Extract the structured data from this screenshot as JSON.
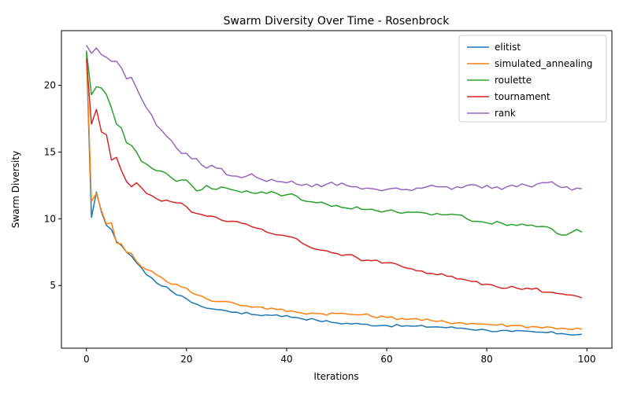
{
  "chart_data": {
    "type": "line",
    "title": "Swarm Diversity Over Time - Rosenbrock",
    "xlabel": "Iterations",
    "ylabel": "Swarm Diversity",
    "xlim": [
      -5,
      105
    ],
    "ylim": [
      0.3,
      24.1
    ],
    "xticks": [
      0,
      20,
      40,
      60,
      80,
      100
    ],
    "yticks": [
      5,
      10,
      15,
      20
    ],
    "grid": false,
    "legend_position": "top-right",
    "series": [
      {
        "name": "elitist",
        "color": "#1f77b4",
        "anchors": [
          [
            0,
            22.4
          ],
          [
            1,
            10.1
          ],
          [
            2,
            12.0
          ],
          [
            3,
            10.5
          ],
          [
            4,
            9.5
          ],
          [
            5,
            9.2
          ],
          [
            6,
            8.3
          ],
          [
            7,
            8.0
          ],
          [
            8,
            7.5
          ],
          [
            9,
            7.2
          ],
          [
            10,
            6.7
          ],
          [
            12,
            5.8
          ],
          [
            14,
            5.2
          ],
          [
            16,
            4.9
          ],
          [
            18,
            4.3
          ],
          [
            20,
            4.0
          ],
          [
            22,
            3.6
          ],
          [
            24,
            3.3
          ],
          [
            26,
            3.2
          ],
          [
            28,
            3.1
          ],
          [
            30,
            3.0
          ],
          [
            34,
            2.8
          ],
          [
            38,
            2.8
          ],
          [
            42,
            2.6
          ],
          [
            46,
            2.4
          ],
          [
            50,
            2.2
          ],
          [
            55,
            2.1
          ],
          [
            60,
            2.0
          ],
          [
            65,
            1.95
          ],
          [
            70,
            1.9
          ],
          [
            75,
            1.8
          ],
          [
            80,
            1.65
          ],
          [
            85,
            1.55
          ],
          [
            90,
            1.5
          ],
          [
            95,
            1.4
          ],
          [
            100,
            1.3
          ]
        ],
        "noise": 0.1
      },
      {
        "name": "simulated_annealing",
        "color": "#ff7f0e",
        "anchors": [
          [
            0,
            22.5
          ],
          [
            1,
            11.3
          ],
          [
            2,
            11.9
          ],
          [
            3,
            10.6
          ],
          [
            4,
            9.6
          ],
          [
            5,
            9.7
          ],
          [
            6,
            8.2
          ],
          [
            7,
            8.1
          ],
          [
            8,
            7.5
          ],
          [
            9,
            7.4
          ],
          [
            10,
            6.8
          ],
          [
            12,
            6.2
          ],
          [
            14,
            5.8
          ],
          [
            16,
            5.3
          ],
          [
            18,
            5.1
          ],
          [
            20,
            4.8
          ],
          [
            22,
            4.3
          ],
          [
            24,
            4.0
          ],
          [
            26,
            3.8
          ],
          [
            28,
            3.8
          ],
          [
            30,
            3.6
          ],
          [
            34,
            3.4
          ],
          [
            38,
            3.2
          ],
          [
            42,
            3.0
          ],
          [
            46,
            2.9
          ],
          [
            50,
            2.9
          ],
          [
            55,
            2.8
          ],
          [
            60,
            2.6
          ],
          [
            65,
            2.5
          ],
          [
            70,
            2.3
          ],
          [
            75,
            2.2
          ],
          [
            80,
            2.1
          ],
          [
            85,
            2.0
          ],
          [
            90,
            1.9
          ],
          [
            95,
            1.8
          ],
          [
            100,
            1.7
          ]
        ],
        "noise": 0.12
      },
      {
        "name": "roulette",
        "color": "#2ca02c",
        "anchors": [
          [
            0,
            22.6
          ],
          [
            1,
            19.3
          ],
          [
            2,
            19.9
          ],
          [
            3,
            19.8
          ],
          [
            4,
            19.3
          ],
          [
            5,
            18.3
          ],
          [
            6,
            17.1
          ],
          [
            7,
            16.8
          ],
          [
            8,
            15.7
          ],
          [
            9,
            15.5
          ],
          [
            10,
            15.0
          ],
          [
            11,
            14.3
          ],
          [
            12,
            14.1
          ],
          [
            14,
            13.6
          ],
          [
            16,
            13.4
          ],
          [
            18,
            12.8
          ],
          [
            20,
            12.9
          ],
          [
            22,
            12.1
          ],
          [
            24,
            12.5
          ],
          [
            26,
            12.2
          ],
          [
            28,
            12.3
          ],
          [
            30,
            12.1
          ],
          [
            32,
            12.1
          ],
          [
            34,
            11.9
          ],
          [
            36,
            11.9
          ],
          [
            38,
            11.9
          ],
          [
            40,
            11.8
          ],
          [
            42,
            11.7
          ],
          [
            44,
            11.3
          ],
          [
            46,
            11.2
          ],
          [
            48,
            11.1
          ],
          [
            50,
            11.0
          ],
          [
            52,
            10.8
          ],
          [
            54,
            10.9
          ],
          [
            56,
            10.7
          ],
          [
            58,
            10.6
          ],
          [
            60,
            10.6
          ],
          [
            62,
            10.5
          ],
          [
            64,
            10.5
          ],
          [
            66,
            10.5
          ],
          [
            68,
            10.4
          ],
          [
            70,
            10.4
          ],
          [
            72,
            10.3
          ],
          [
            74,
            10.3
          ],
          [
            76,
            10.0
          ],
          [
            78,
            9.8
          ],
          [
            80,
            9.7
          ],
          [
            82,
            9.8
          ],
          [
            84,
            9.5
          ],
          [
            86,
            9.5
          ],
          [
            88,
            9.5
          ],
          [
            90,
            9.4
          ],
          [
            92,
            9.4
          ],
          [
            94,
            8.9
          ],
          [
            96,
            8.8
          ],
          [
            98,
            9.2
          ],
          [
            100,
            8.9
          ]
        ],
        "noise": 0.15
      },
      {
        "name": "tournament",
        "color": "#d62728",
        "anchors": [
          [
            0,
            22.0
          ],
          [
            1,
            17.1
          ],
          [
            2,
            18.2
          ],
          [
            3,
            16.5
          ],
          [
            4,
            16.3
          ],
          [
            5,
            14.4
          ],
          [
            6,
            14.6
          ],
          [
            7,
            13.6
          ],
          [
            8,
            12.8
          ],
          [
            9,
            12.4
          ],
          [
            10,
            12.7
          ],
          [
            12,
            11.9
          ],
          [
            14,
            11.5
          ],
          [
            16,
            11.4
          ],
          [
            18,
            11.2
          ],
          [
            20,
            10.9
          ],
          [
            22,
            10.4
          ],
          [
            24,
            10.2
          ],
          [
            26,
            10.1
          ],
          [
            28,
            9.8
          ],
          [
            30,
            9.8
          ],
          [
            32,
            9.6
          ],
          [
            34,
            9.3
          ],
          [
            36,
            9.0
          ],
          [
            38,
            8.8
          ],
          [
            40,
            8.7
          ],
          [
            42,
            8.5
          ],
          [
            44,
            8.0
          ],
          [
            46,
            7.7
          ],
          [
            48,
            7.6
          ],
          [
            50,
            7.4
          ],
          [
            52,
            7.3
          ],
          [
            54,
            7.1
          ],
          [
            56,
            6.9
          ],
          [
            58,
            6.9
          ],
          [
            60,
            6.7
          ],
          [
            62,
            6.6
          ],
          [
            64,
            6.3
          ],
          [
            66,
            6.1
          ],
          [
            68,
            5.9
          ],
          [
            70,
            5.8
          ],
          [
            72,
            5.7
          ],
          [
            74,
            5.5
          ],
          [
            76,
            5.4
          ],
          [
            78,
            5.3
          ],
          [
            80,
            5.1
          ],
          [
            82,
            4.9
          ],
          [
            84,
            4.8
          ],
          [
            86,
            4.8
          ],
          [
            88,
            4.8
          ],
          [
            90,
            4.8
          ],
          [
            92,
            4.5
          ],
          [
            94,
            4.4
          ],
          [
            96,
            4.3
          ],
          [
            98,
            4.2
          ],
          [
            100,
            4.0
          ]
        ],
        "noise": 0.15
      },
      {
        "name": "rank",
        "color": "#9467bd",
        "anchors": [
          [
            0,
            23.0
          ],
          [
            1,
            22.4
          ],
          [
            2,
            22.8
          ],
          [
            3,
            22.3
          ],
          [
            4,
            22.1
          ],
          [
            5,
            21.8
          ],
          [
            6,
            21.8
          ],
          [
            7,
            21.3
          ],
          [
            8,
            20.5
          ],
          [
            9,
            20.6
          ],
          [
            10,
            19.8
          ],
          [
            11,
            19.0
          ],
          [
            12,
            18.3
          ],
          [
            14,
            17.0
          ],
          [
            16,
            16.2
          ],
          [
            18,
            15.3
          ],
          [
            19,
            14.9
          ],
          [
            20,
            14.9
          ],
          [
            22,
            14.5
          ],
          [
            24,
            13.8
          ],
          [
            26,
            13.8
          ],
          [
            28,
            13.3
          ],
          [
            30,
            13.2
          ],
          [
            32,
            13.2
          ],
          [
            34,
            13.1
          ],
          [
            36,
            12.8
          ],
          [
            38,
            12.8
          ],
          [
            40,
            12.7
          ],
          [
            42,
            12.6
          ],
          [
            44,
            12.6
          ],
          [
            46,
            12.6
          ],
          [
            48,
            12.6
          ],
          [
            50,
            12.5
          ],
          [
            52,
            12.5
          ],
          [
            54,
            12.4
          ],
          [
            56,
            12.3
          ],
          [
            58,
            12.2
          ],
          [
            60,
            12.2
          ],
          [
            62,
            12.3
          ],
          [
            64,
            12.2
          ],
          [
            66,
            12.3
          ],
          [
            68,
            12.4
          ],
          [
            70,
            12.4
          ],
          [
            72,
            12.4
          ],
          [
            74,
            12.4
          ],
          [
            76,
            12.5
          ],
          [
            78,
            12.5
          ],
          [
            80,
            12.5
          ],
          [
            82,
            12.4
          ],
          [
            84,
            12.4
          ],
          [
            86,
            12.4
          ],
          [
            88,
            12.5
          ],
          [
            90,
            12.6
          ],
          [
            92,
            12.7
          ],
          [
            94,
            12.5
          ],
          [
            96,
            12.4
          ],
          [
            98,
            12.3
          ],
          [
            100,
            12.1
          ]
        ],
        "noise": 0.22
      }
    ]
  }
}
